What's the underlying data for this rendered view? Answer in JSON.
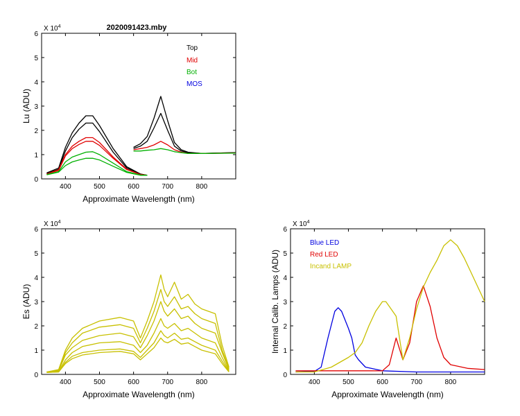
{
  "figure_title": "2020091423.mby",
  "colors": {
    "top": "#000000",
    "mid": "#e00000",
    "bot": "#00b000",
    "mos": "#0000e0",
    "es": "#c8c000",
    "blue_led": "#0000e0",
    "red_led": "#e00000",
    "incand_lamp": "#c8c000"
  },
  "chart_data": [
    {
      "id": "lu",
      "type": "line",
      "title": "2020091423.mby",
      "xlabel": "Approximate Wavelength (nm)",
      "ylabel": "Lu (ADU)",
      "exponent_label": "X 10",
      "exponent_power": "4",
      "xlim": [
        330,
        900
      ],
      "ylim": [
        0,
        6
      ],
      "xticks": [
        400,
        500,
        600,
        700,
        800
      ],
      "yticks": [
        0,
        1,
        2,
        3,
        4,
        5,
        6
      ],
      "legend_position": "top-right",
      "legend": [
        {
          "label": "Top",
          "color_key": "top"
        },
        {
          "label": "Mid",
          "color_key": "mid"
        },
        {
          "label": "Bot",
          "color_key": "bot"
        },
        {
          "label": "MOS",
          "color_key": "mos"
        }
      ],
      "series": [
        {
          "name": "Top",
          "color_key": "top",
          "x": [
            345,
            380,
            400,
            420,
            440,
            460,
            480,
            500,
            540,
            580,
            620,
            640
          ],
          "y": [
            0.25,
            0.45,
            1.3,
            1.9,
            2.3,
            2.6,
            2.6,
            2.2,
            1.25,
            0.5,
            0.2,
            0.15
          ]
        },
        {
          "name": "Top",
          "color_key": "top",
          "x": [
            345,
            380,
            400,
            420,
            440,
            460,
            480,
            500,
            540,
            580,
            620,
            640
          ],
          "y": [
            0.22,
            0.4,
            1.15,
            1.7,
            2.05,
            2.3,
            2.3,
            1.95,
            1.1,
            0.45,
            0.2,
            0.15
          ]
        },
        {
          "name": "Mid",
          "color_key": "mid",
          "x": [
            345,
            380,
            400,
            420,
            440,
            460,
            480,
            500,
            540,
            580,
            620,
            640
          ],
          "y": [
            0.2,
            0.38,
            1.0,
            1.35,
            1.55,
            1.7,
            1.7,
            1.5,
            0.9,
            0.4,
            0.18,
            0.15
          ]
        },
        {
          "name": "Mid",
          "color_key": "mid",
          "x": [
            345,
            380,
            400,
            420,
            440,
            460,
            480,
            500,
            540,
            580,
            620,
            640
          ],
          "y": [
            0.2,
            0.35,
            0.95,
            1.25,
            1.42,
            1.55,
            1.55,
            1.38,
            0.85,
            0.38,
            0.18,
            0.15
          ]
        },
        {
          "name": "Bot",
          "color_key": "bot",
          "x": [
            345,
            380,
            400,
            420,
            440,
            460,
            480,
            500,
            540,
            580,
            620,
            640
          ],
          "y": [
            0.18,
            0.3,
            0.7,
            0.9,
            1.0,
            1.1,
            1.12,
            1.0,
            0.65,
            0.3,
            0.16,
            0.15
          ]
        },
        {
          "name": "Bot",
          "color_key": "bot",
          "x": [
            345,
            380,
            400,
            420,
            440,
            460,
            480,
            500,
            540,
            580,
            620,
            640
          ],
          "y": [
            0.17,
            0.28,
            0.55,
            0.7,
            0.78,
            0.85,
            0.85,
            0.78,
            0.52,
            0.27,
            0.15,
            0.15
          ]
        },
        {
          "name": "Top",
          "color_key": "top",
          "x": [
            600,
            620,
            640,
            660,
            680,
            700,
            720,
            740,
            760,
            800,
            900
          ],
          "y": [
            1.3,
            1.45,
            1.75,
            2.5,
            3.4,
            2.4,
            1.5,
            1.2,
            1.1,
            1.05,
            1.08
          ]
        },
        {
          "name": "Top",
          "color_key": "top",
          "x": [
            600,
            620,
            640,
            660,
            680,
            700,
            720,
            740,
            760,
            800,
            900
          ],
          "y": [
            1.25,
            1.35,
            1.55,
            2.1,
            2.7,
            2.0,
            1.35,
            1.15,
            1.08,
            1.05,
            1.08
          ]
        },
        {
          "name": "Mid",
          "color_key": "mid",
          "x": [
            600,
            620,
            640,
            660,
            680,
            700,
            720,
            740,
            760,
            800,
            900
          ],
          "y": [
            1.2,
            1.25,
            1.3,
            1.4,
            1.55,
            1.4,
            1.2,
            1.1,
            1.05,
            1.05,
            1.07
          ]
        },
        {
          "name": "Bot",
          "color_key": "bot",
          "x": [
            600,
            620,
            640,
            660,
            680,
            700,
            720,
            740,
            760,
            800,
            900
          ],
          "y": [
            1.15,
            1.15,
            1.18,
            1.2,
            1.25,
            1.2,
            1.12,
            1.08,
            1.05,
            1.05,
            1.06
          ]
        }
      ]
    },
    {
      "id": "es",
      "type": "line",
      "xlabel": "Approximate Wavelength (nm)",
      "ylabel": "Es  (ADU)",
      "exponent_label": "X 10",
      "exponent_power": "4",
      "xlim": [
        330,
        900
      ],
      "ylim": [
        0,
        6
      ],
      "xticks": [
        400,
        500,
        600,
        700,
        800
      ],
      "yticks": [
        0,
        1,
        2,
        3,
        4,
        5,
        6
      ],
      "series": [
        {
          "name": "Es",
          "color_key": "es",
          "x": [
            345,
            380,
            400,
            420,
            450,
            500,
            560,
            600,
            620,
            640,
            660,
            680,
            690,
            700,
            720,
            740,
            760,
            780,
            800,
            840,
            860,
            880
          ],
          "y": [
            0.1,
            0.2,
            1.0,
            1.5,
            1.9,
            2.2,
            2.35,
            2.2,
            1.5,
            2.2,
            3.0,
            4.1,
            3.5,
            3.2,
            3.8,
            3.1,
            3.3,
            2.9,
            2.7,
            2.5,
            1.2,
            0.3
          ]
        },
        {
          "name": "Es",
          "color_key": "es",
          "x": [
            345,
            380,
            400,
            420,
            450,
            500,
            560,
            600,
            620,
            640,
            660,
            680,
            690,
            700,
            720,
            740,
            760,
            780,
            800,
            840,
            860,
            880
          ],
          "y": [
            0.1,
            0.18,
            0.9,
            1.3,
            1.7,
            1.95,
            2.05,
            1.9,
            1.3,
            1.9,
            2.6,
            3.5,
            3.0,
            2.8,
            3.2,
            2.7,
            2.8,
            2.5,
            2.3,
            2.1,
            1.0,
            0.25
          ]
        },
        {
          "name": "Es",
          "color_key": "es",
          "x": [
            345,
            380,
            400,
            420,
            450,
            500,
            560,
            600,
            620,
            640,
            660,
            680,
            690,
            700,
            720,
            740,
            760,
            780,
            800,
            840,
            860,
            880
          ],
          "y": [
            0.1,
            0.15,
            0.8,
            1.1,
            1.4,
            1.6,
            1.7,
            1.55,
            1.1,
            1.6,
            2.2,
            3.0,
            2.6,
            2.4,
            2.7,
            2.3,
            2.4,
            2.1,
            1.9,
            1.7,
            0.9,
            0.2
          ]
        },
        {
          "name": "Es",
          "color_key": "es",
          "x": [
            345,
            380,
            400,
            420,
            450,
            500,
            560,
            600,
            620,
            640,
            660,
            680,
            690,
            700,
            720,
            740,
            760,
            780,
            800,
            840,
            860,
            880
          ],
          "y": [
            0.1,
            0.12,
            0.6,
            0.9,
            1.15,
            1.3,
            1.35,
            1.2,
            0.9,
            1.2,
            1.7,
            2.3,
            2.0,
            1.9,
            2.1,
            1.8,
            1.9,
            1.7,
            1.5,
            1.3,
            0.7,
            0.15
          ]
        },
        {
          "name": "Es",
          "color_key": "es",
          "x": [
            345,
            380,
            400,
            420,
            450,
            500,
            560,
            600,
            620,
            640,
            660,
            680,
            690,
            700,
            720,
            740,
            760,
            780,
            800,
            840,
            860,
            880
          ],
          "y": [
            0.08,
            0.1,
            0.5,
            0.75,
            0.9,
            1.0,
            1.05,
            0.95,
            0.7,
            1.0,
            1.3,
            1.8,
            1.6,
            1.5,
            1.7,
            1.45,
            1.5,
            1.35,
            1.2,
            1.0,
            0.55,
            0.12
          ]
        },
        {
          "name": "Es",
          "color_key": "es",
          "x": [
            345,
            380,
            400,
            420,
            450,
            500,
            560,
            600,
            620,
            640,
            660,
            680,
            690,
            700,
            720,
            740,
            760,
            780,
            800,
            840,
            860,
            880
          ],
          "y": [
            0.08,
            0.1,
            0.45,
            0.65,
            0.8,
            0.9,
            0.95,
            0.85,
            0.6,
            0.85,
            1.1,
            1.5,
            1.35,
            1.3,
            1.45,
            1.25,
            1.3,
            1.15,
            1.0,
            0.85,
            0.45,
            0.1
          ]
        }
      ]
    },
    {
      "id": "lamps",
      "type": "line",
      "xlabel": "Approximate Wavelength (nm)",
      "ylabel": "Internal Calib. Lamps  (ADU)",
      "exponent_label": "X 10",
      "exponent_power": "4",
      "xlim": [
        330,
        900
      ],
      "ylim": [
        0,
        6
      ],
      "xticks": [
        400,
        500,
        600,
        700,
        800
      ],
      "yticks": [
        0,
        1,
        2,
        3,
        4,
        5,
        6
      ],
      "legend_position": "top-left",
      "legend": [
        {
          "label": "Blue LED",
          "color_key": "blue_led"
        },
        {
          "label": "Red LED",
          "color_key": "red_led"
        },
        {
          "label": "Incand LAMP",
          "color_key": "incand_lamp"
        }
      ],
      "series": [
        {
          "name": "Blue LED",
          "color_key": "blue_led",
          "x": [
            345,
            400,
            420,
            440,
            460,
            470,
            480,
            500,
            510,
            520,
            530,
            550,
            600,
            700,
            900
          ],
          "y": [
            0.1,
            0.12,
            0.3,
            1.5,
            2.6,
            2.75,
            2.6,
            1.9,
            1.5,
            0.8,
            0.6,
            0.3,
            0.15,
            0.1,
            0.1
          ]
        },
        {
          "name": "Red LED",
          "color_key": "red_led",
          "x": [
            345,
            600,
            620,
            640,
            660,
            680,
            700,
            720,
            740,
            760,
            780,
            800,
            850,
            900
          ],
          "y": [
            0.15,
            0.15,
            0.4,
            1.5,
            0.6,
            1.3,
            3.0,
            3.65,
            2.8,
            1.5,
            0.7,
            0.4,
            0.25,
            0.2
          ]
        },
        {
          "name": "Incand LAMP",
          "color_key": "incand_lamp",
          "x": [
            345,
            400,
            450,
            500,
            520,
            540,
            560,
            580,
            600,
            610,
            620,
            640,
            660,
            680,
            700,
            720,
            740,
            760,
            780,
            800,
            820,
            840,
            860,
            880,
            900
          ],
          "y": [
            0.1,
            0.1,
            0.3,
            0.7,
            0.9,
            1.3,
            2.0,
            2.6,
            3.0,
            3.0,
            2.8,
            2.4,
            0.6,
            1.5,
            2.7,
            3.6,
            4.2,
            4.7,
            5.3,
            5.55,
            5.3,
            4.8,
            4.2,
            3.6,
            3.0
          ]
        }
      ]
    }
  ]
}
